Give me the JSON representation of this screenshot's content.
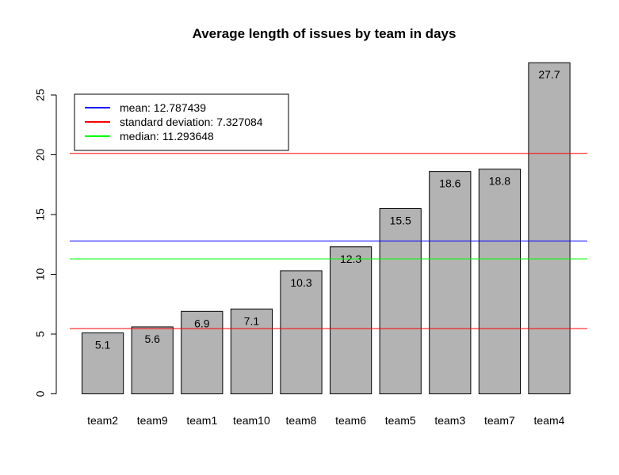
{
  "chart_data": {
    "type": "bar",
    "title": "Average length of issues by team in days",
    "xlabel": "",
    "ylabel": "",
    "categories": [
      "team2",
      "team9",
      "team1",
      "team10",
      "team8",
      "team6",
      "team5",
      "team3",
      "team7",
      "team4"
    ],
    "values": [
      5.1,
      5.6,
      6.9,
      7.1,
      10.3,
      12.3,
      15.5,
      18.6,
      18.8,
      27.7
    ],
    "data_labels": [
      "5.1",
      "5.6",
      "6.9",
      "7.1",
      "10.3",
      "12.3",
      "15.5",
      "18.6",
      "18.8",
      "27.7"
    ],
    "bar_color": "#b3b3b3",
    "ylim": [
      0,
      27.7
    ],
    "yticks": [
      0,
      5,
      10,
      15,
      20,
      25
    ],
    "ytick_labels": [
      "0",
      "5",
      "10",
      "15",
      "20",
      "25"
    ],
    "grid": false,
    "legend_position": "top-left",
    "reference_lines": [
      {
        "name": "mean",
        "value": 12.787439,
        "color": "#0000ff"
      },
      {
        "name": "standard deviation upper",
        "value": 20.114523,
        "color": "#ff0000"
      },
      {
        "name": "standard deviation lower",
        "value": 5.460355,
        "color": "#ff0000"
      },
      {
        "name": "median",
        "value": 11.293648,
        "color": "#00ff00"
      }
    ],
    "legend": [
      {
        "label": "mean: 12.787439",
        "color": "#0000ff"
      },
      {
        "label": "standard deviation: 7.327084",
        "color": "#ff0000"
      },
      {
        "label": "median: 11.293648",
        "color": "#00ff00"
      }
    ]
  }
}
